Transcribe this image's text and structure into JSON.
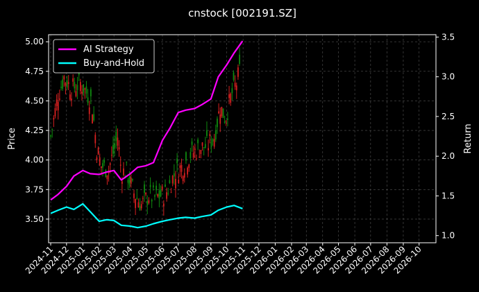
{
  "chart_data": {
    "type": "line",
    "title": "cnstock [002191.SZ]",
    "ylabel_left": "Price",
    "ylabel_right": "Return",
    "ylim_left": [
      3.3,
      5.06
    ],
    "ylim_right": [
      0.91,
      3.53
    ],
    "left_ticks": [
      "3.50",
      "3.75",
      "4.00",
      "4.25",
      "4.50",
      "4.75",
      "5.00"
    ],
    "right_ticks": [
      "1.0",
      "1.5",
      "2.0",
      "2.5",
      "3.0",
      "3.5"
    ],
    "x_ticks": [
      "2024-11",
      "2024-12",
      "2025-01",
      "2025-02",
      "2025-03",
      "2025-04",
      "2025-05",
      "2025-06",
      "2025-07",
      "2025-08",
      "2025-09",
      "2025-10",
      "2025-11",
      "2025-12",
      "2026-01",
      "2026-02",
      "2026-03",
      "2026-04",
      "2026-05",
      "2026-06",
      "2026-07",
      "2026-08",
      "2026-09",
      "2026-10"
    ],
    "grid": true,
    "legend_position": "top-left",
    "series": [
      {
        "name": "AI Strategy",
        "color": "#ff00ff",
        "axis": "right",
        "x": [
          "2024-11-01",
          "2024-11-15",
          "2024-12-01",
          "2024-12-15",
          "2025-01-01",
          "2025-01-15",
          "2025-02-01",
          "2025-02-15",
          "2025-03-01",
          "2025-03-15",
          "2025-04-01",
          "2025-04-15",
          "2025-05-01",
          "2025-05-15",
          "2025-06-01",
          "2025-06-15",
          "2025-07-01",
          "2025-07-15",
          "2025-08-01",
          "2025-08-15",
          "2025-09-01",
          "2025-09-15",
          "2025-10-01",
          "2025-10-15",
          "2025-10-31"
        ],
        "values": [
          1.45,
          1.52,
          1.62,
          1.75,
          1.82,
          1.78,
          1.77,
          1.8,
          1.82,
          1.7,
          1.78,
          1.86,
          1.88,
          1.92,
          2.2,
          2.35,
          2.55,
          2.58,
          2.6,
          2.65,
          2.72,
          3.0,
          3.15,
          3.3,
          3.45
        ]
      },
      {
        "name": "Buy-and-Hold",
        "color": "#00ffff",
        "axis": "right",
        "x": [
          "2024-11-01",
          "2024-11-15",
          "2024-12-01",
          "2024-12-15",
          "2025-01-01",
          "2025-01-15",
          "2025-02-01",
          "2025-02-15",
          "2025-03-01",
          "2025-03-15",
          "2025-04-01",
          "2025-04-15",
          "2025-05-01",
          "2025-05-15",
          "2025-06-01",
          "2025-06-15",
          "2025-07-01",
          "2025-07-15",
          "2025-08-01",
          "2025-08-15",
          "2025-09-01",
          "2025-09-15",
          "2025-10-01",
          "2025-10-15",
          "2025-10-31"
        ],
        "values": [
          1.28,
          1.32,
          1.36,
          1.33,
          1.4,
          1.3,
          1.18,
          1.2,
          1.19,
          1.13,
          1.12,
          1.1,
          1.12,
          1.15,
          1.18,
          1.2,
          1.22,
          1.23,
          1.22,
          1.24,
          1.26,
          1.32,
          1.36,
          1.38,
          1.34
        ]
      }
    ]
  }
}
